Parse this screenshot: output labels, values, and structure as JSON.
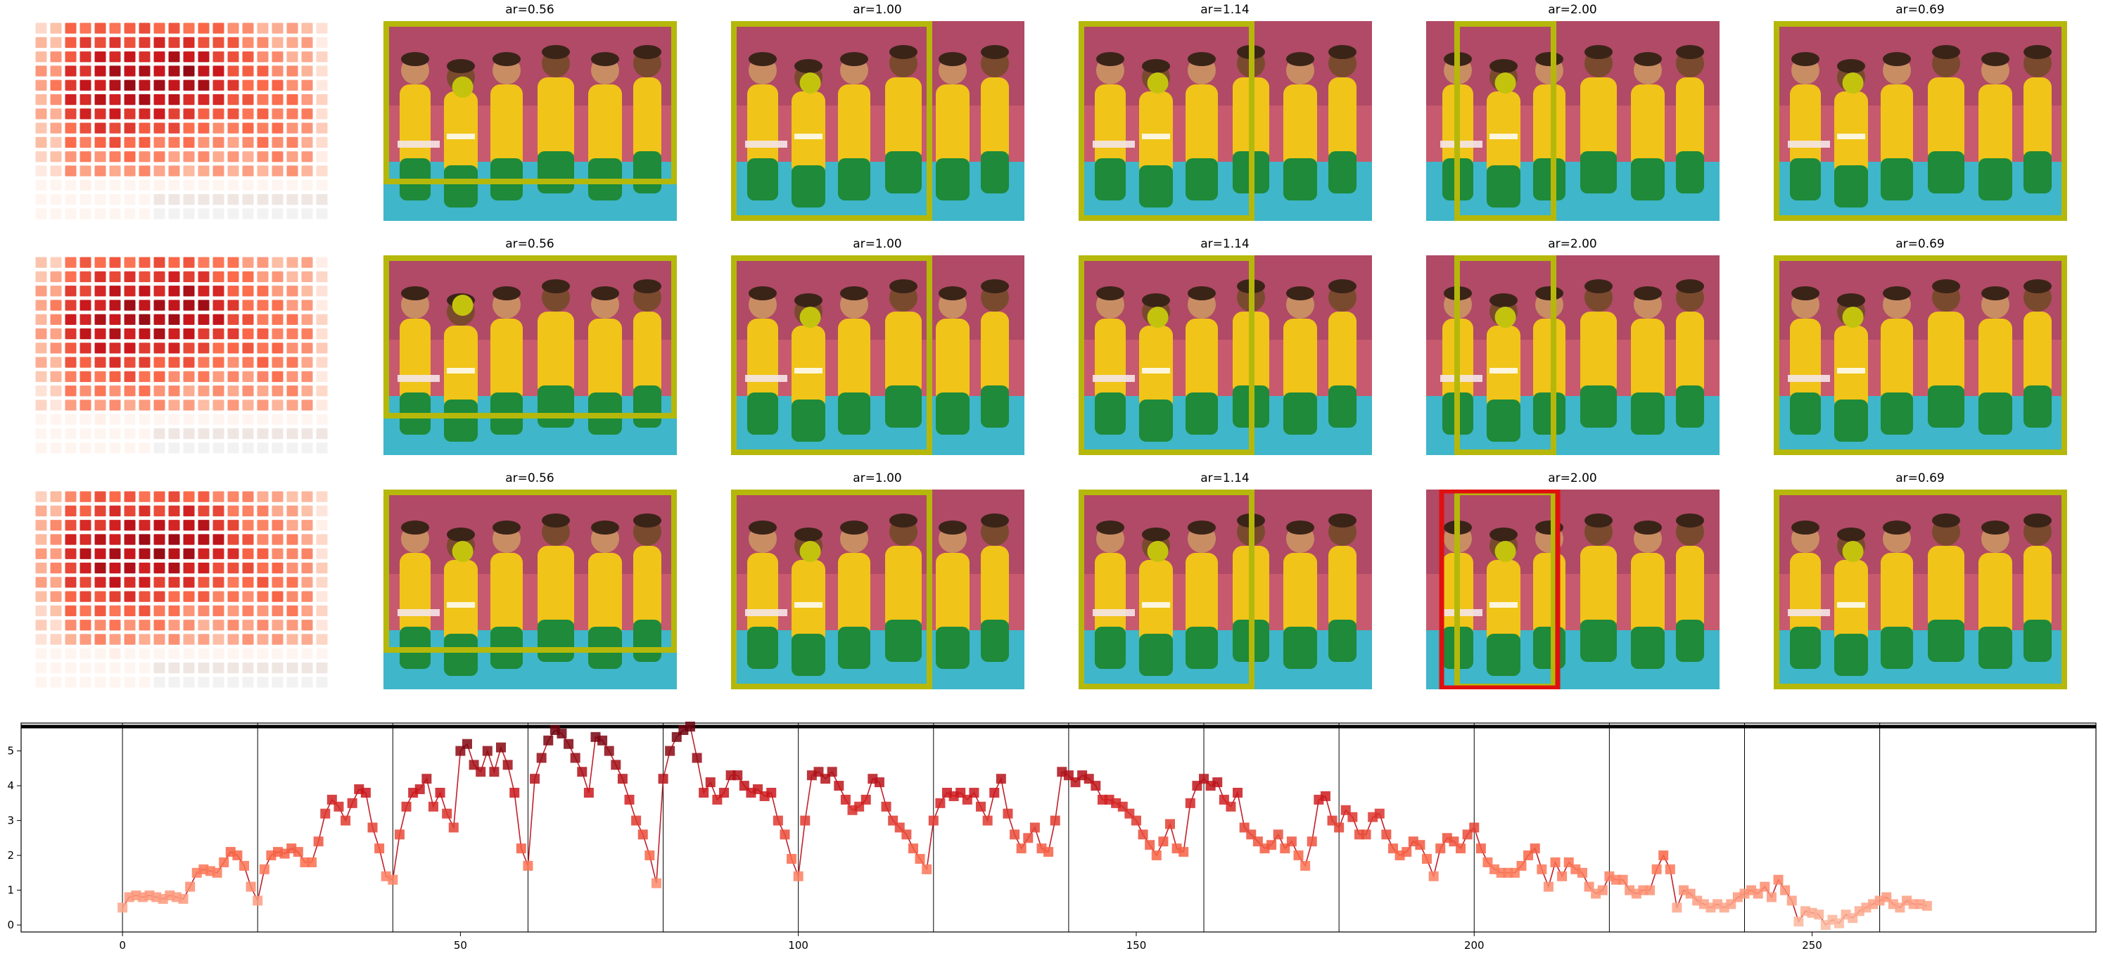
{
  "figure": {
    "rows": [
      {
        "row_id": "row-1",
        "panels": [
          {
            "title": "ar=0.56",
            "ar": 0.56,
            "dot": [
              0.27,
              0.33
            ]
          },
          {
            "title": "ar=1.00",
            "ar": 1.0,
            "dot": [
              0.27,
              0.31
            ]
          },
          {
            "title": "ar=1.14",
            "ar": 1.14,
            "dot": [
              0.27,
              0.31
            ]
          },
          {
            "title": "ar=2.00",
            "ar": 2.0,
            "dot": [
              0.27,
              0.31
            ]
          },
          {
            "title": "ar=0.69",
            "ar": 0.69,
            "dot": [
              0.27,
              0.31
            ]
          }
        ]
      },
      {
        "row_id": "row-2",
        "panels": [
          {
            "title": "ar=0.56",
            "ar": 0.56,
            "dot": [
              0.27,
              0.25
            ]
          },
          {
            "title": "ar=1.00",
            "ar": 1.0,
            "dot": [
              0.27,
              0.31
            ]
          },
          {
            "title": "ar=1.14",
            "ar": 1.14,
            "dot": [
              0.27,
              0.31
            ]
          },
          {
            "title": "ar=2.00",
            "ar": 2.0,
            "dot": [
              0.27,
              0.31
            ]
          },
          {
            "title": "ar=0.69",
            "ar": 0.69,
            "dot": [
              0.27,
              0.31
            ]
          }
        ]
      },
      {
        "row_id": "row-3",
        "panels": [
          {
            "title": "ar=0.56",
            "ar": 0.56,
            "dot": [
              0.27,
              0.31
            ]
          },
          {
            "title": "ar=1.00",
            "ar": 1.0,
            "dot": [
              0.27,
              0.31
            ]
          },
          {
            "title": "ar=1.14",
            "ar": 1.14,
            "dot": [
              0.27,
              0.31
            ]
          },
          {
            "title": "ar=2.00",
            "ar": 2.0,
            "dot": [
              0.27,
              0.31
            ],
            "red_box": true
          },
          {
            "title": "ar=0.69",
            "ar": 0.69,
            "dot": [
              0.27,
              0.31
            ]
          }
        ]
      }
    ],
    "colors": {
      "box": "#b5b80a",
      "dot": "#c3c30e",
      "red_box": "#e01010",
      "heatmap_low": "#f2f2f2",
      "heatmap_high": "#8b1a1a"
    }
  },
  "chart_data": {
    "type": "line",
    "title": "",
    "xlabel": "",
    "ylabel": "",
    "xlim": [
      -15,
      292
    ],
    "ylim": [
      -0.2,
      5.8
    ],
    "xticks": [
      0,
      50,
      100,
      150,
      200,
      250
    ],
    "yticks": [
      0,
      1,
      2,
      3,
      4,
      5
    ],
    "vlines": [
      0,
      20,
      40,
      60,
      80,
      100,
      120,
      140,
      160,
      180,
      200,
      220,
      240,
      260
    ],
    "hline": 5.7,
    "marker": "square",
    "grid": false,
    "values": [
      0.5,
      0.8,
      0.85,
      0.8,
      0.85,
      0.8,
      0.75,
      0.85,
      0.8,
      0.75,
      1.1,
      1.5,
      1.6,
      1.55,
      1.5,
      1.8,
      2.1,
      2.0,
      1.7,
      1.1,
      0.7,
      1.6,
      2.0,
      2.1,
      2.05,
      2.2,
      2.1,
      1.8,
      1.8,
      2.4,
      3.2,
      3.6,
      3.4,
      3.0,
      3.5,
      3.9,
      3.8,
      2.8,
      2.2,
      1.4,
      1.3,
      2.6,
      3.4,
      3.8,
      3.9,
      4.2,
      3.4,
      3.8,
      3.2,
      2.8,
      5.0,
      5.2,
      4.6,
      4.4,
      5.0,
      4.4,
      5.1,
      4.6,
      3.8,
      2.2,
      1.7,
      4.2,
      4.8,
      5.3,
      5.6,
      5.5,
      5.2,
      4.8,
      4.4,
      3.8,
      5.4,
      5.3,
      5.0,
      4.6,
      4.2,
      3.6,
      3.0,
      2.6,
      2.0,
      1.2,
      4.2,
      5.0,
      5.4,
      5.6,
      5.7,
      4.8,
      3.8,
      4.1,
      3.6,
      3.8,
      4.3,
      4.3,
      4.0,
      3.8,
      3.9,
      3.7,
      3.8,
      3.0,
      2.6,
      1.9,
      1.4,
      3.0,
      4.3,
      4.4,
      4.2,
      4.4,
      4.0,
      3.6,
      3.3,
      3.4,
      3.6,
      4.2,
      4.1,
      3.4,
      3.0,
      2.8,
      2.6,
      2.2,
      1.9,
      1.6,
      3.0,
      3.5,
      3.8,
      3.7,
      3.8,
      3.6,
      3.8,
      3.4,
      3.0,
      3.8,
      4.2,
      3.2,
      2.6,
      2.2,
      2.5,
      2.8,
      2.2,
      2.1,
      3.0,
      4.4,
      4.3,
      4.1,
      4.3,
      4.2,
      4.0,
      3.6,
      3.6,
      3.5,
      3.4,
      3.2,
      3.0,
      2.6,
      2.3,
      2.0,
      2.4,
      2.9,
      2.2,
      2.1,
      3.5,
      4.0,
      4.2,
      4.0,
      4.1,
      3.6,
      3.4,
      3.8,
      2.8,
      2.6,
      2.4,
      2.2,
      2.3,
      2.6,
      2.2,
      2.4,
      2.0,
      1.7,
      2.4,
      3.6,
      3.7,
      3.0,
      2.8,
      3.3,
      3.1,
      2.6,
      2.6,
      3.1,
      3.2,
      2.6,
      2.2,
      2.0,
      2.1,
      2.4,
      2.3,
      1.9,
      1.4,
      2.2,
      2.5,
      2.4,
      2.2,
      2.6,
      2.8,
      2.2,
      1.8,
      1.6,
      1.5,
      1.5,
      1.5,
      1.7,
      2.0,
      2.2,
      1.6,
      1.1,
      1.8,
      1.4,
      1.8,
      1.6,
      1.5,
      1.1,
      0.9,
      1.0,
      1.4,
      1.3,
      1.3,
      1.0,
      0.9,
      1.0,
      1.0,
      1.6,
      2.0,
      1.6,
      0.5,
      1.0,
      0.9,
      0.7,
      0.6,
      0.5,
      0.6,
      0.5,
      0.6,
      0.8,
      0.9,
      1.0,
      0.9,
      1.1,
      0.8,
      1.3,
      1.0,
      0.7,
      0.1,
      0.4,
      0.35,
      0.3,
      0.0,
      0.15,
      0.05,
      0.3,
      0.2,
      0.4,
      0.5,
      0.6,
      0.7,
      0.8,
      0.6,
      0.5,
      0.7,
      0.6,
      0.6,
      0.55
    ]
  }
}
